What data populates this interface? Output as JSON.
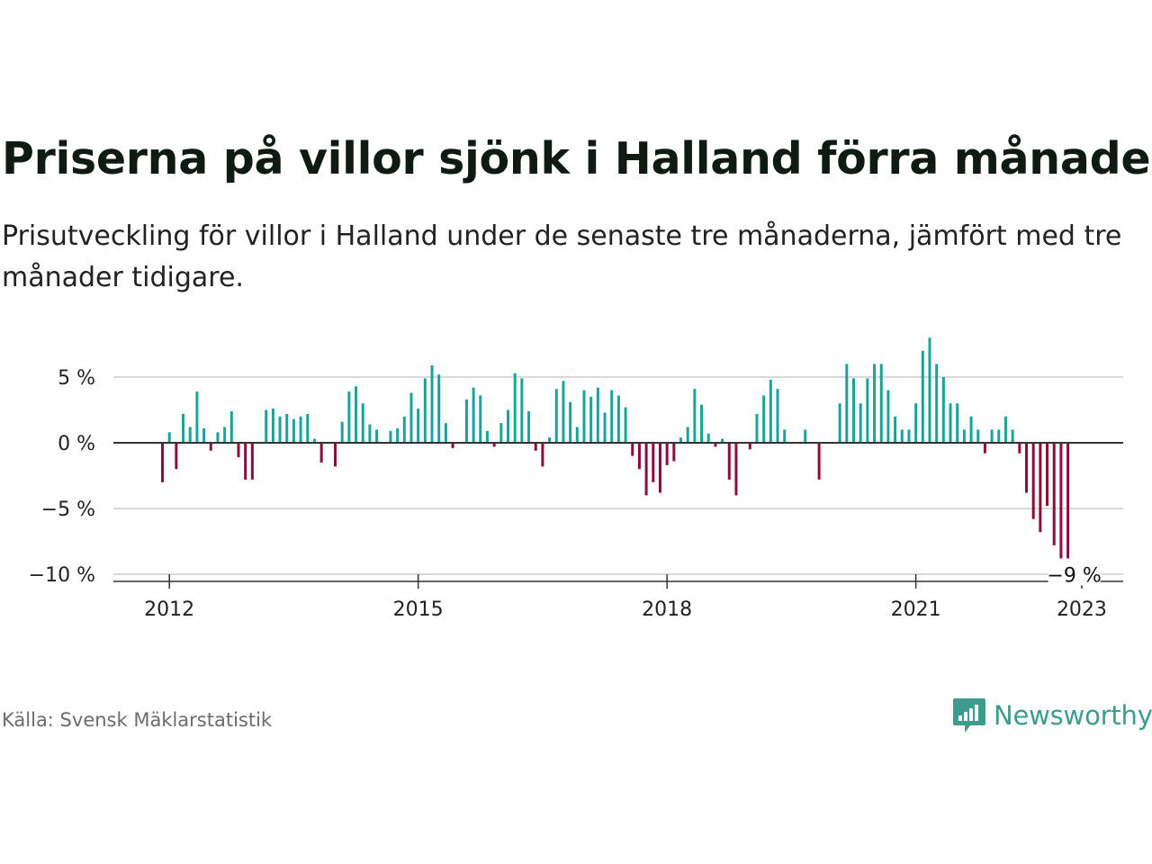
{
  "title": "Priserna på villor sjönk i Halland förra månaden",
  "subtitle": "Prisutveckling för villor i Halland under de senaste tre månaderna, jämfört med tre månader tidigare.",
  "source": "Källa: Svensk Mäklarstatistik",
  "brand": {
    "name": "Newsworthy"
  },
  "colors": {
    "positive": "#1aa39a",
    "negative": "#8c0d3c",
    "zero_line": "#333333",
    "grid": "#d9d9d9",
    "brand": "#3d9c8d"
  },
  "chart_data": {
    "type": "bar",
    "x_start": "2011-12",
    "x_step": "month",
    "xlabel": "",
    "ylabel": "",
    "ylim": [
      -10,
      8
    ],
    "y_ticks": [
      {
        "value": 5,
        "label": "5 %"
      },
      {
        "value": 0,
        "label": "0 %"
      },
      {
        "value": -5,
        "label": "−5 %"
      },
      {
        "value": -10,
        "label": "−10 %"
      }
    ],
    "x_ticks": [
      {
        "value": "2012-01",
        "label": "2012"
      },
      {
        "value": "2015-01",
        "label": "2015"
      },
      {
        "value": "2018-01",
        "label": "2018"
      },
      {
        "value": "2021-01",
        "label": "2021"
      },
      {
        "value": "2023-01",
        "label": "2023"
      }
    ],
    "end_label": "−9 %",
    "values": [
      -3.0,
      0.8,
      -2.0,
      2.2,
      1.2,
      3.9,
      1.1,
      -0.6,
      0.8,
      1.2,
      2.4,
      -1.1,
      -2.8,
      -2.8,
      0,
      2.5,
      2.6,
      2.0,
      2.2,
      1.8,
      2.0,
      2.2,
      0.3,
      -1.5,
      0,
      -1.8,
      1.6,
      3.9,
      4.3,
      3.0,
      1.4,
      1.0,
      0,
      0.9,
      1.1,
      2.0,
      3.8,
      2.6,
      4.9,
      5.9,
      5.2,
      1.5,
      -0.4,
      0,
      3.3,
      4.2,
      3.6,
      0.9,
      -0.3,
      1.5,
      2.5,
      5.3,
      4.9,
      2.4,
      -0.6,
      -1.8,
      0.4,
      4.1,
      4.7,
      3.1,
      1.2,
      4.0,
      3.5,
      4.2,
      2.3,
      4.0,
      3.6,
      2.7,
      -1.0,
      -2.0,
      -4.0,
      -3.0,
      -3.8,
      -1.7,
      -1.4,
      0.4,
      1.2,
      4.1,
      2.9,
      0.7,
      -0.3,
      0.3,
      -2.8,
      -4.0,
      0,
      -0.5,
      2.2,
      3.6,
      4.8,
      4.1,
      1.0,
      0,
      0,
      1.0,
      0,
      -2.8,
      0,
      0,
      3.0,
      6.0,
      4.9,
      3.0,
      4.9,
      6.0,
      6.0,
      4.0,
      2.0,
      1.0,
      1.0,
      3.0,
      7.0,
      8.0,
      6.0,
      5.0,
      3.0,
      3.0,
      1.0,
      2.0,
      1.0,
      -0.8,
      1.0,
      1.0,
      2.0,
      1.0,
      -0.8,
      -3.8,
      -5.8,
      -6.8,
      -4.8,
      -7.8,
      -8.8,
      -8.8
    ]
  }
}
